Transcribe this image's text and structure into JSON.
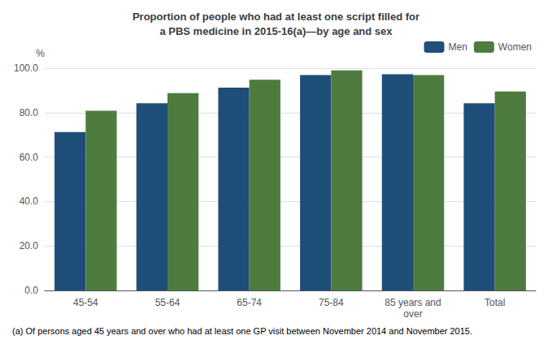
{
  "chart_data": {
    "type": "bar",
    "title": "Proportion of people who had at least one script filled for\na PBS medicine in 2015-16(a)—by age and sex",
    "footnote": "(a) Of persons aged 45 years and over who had at least one GP visit between November 2014 and November 2015.",
    "ylabel": "%",
    "categories": [
      "45-54",
      "55-64",
      "65-74",
      "75-84",
      "85 years and\nover",
      "Total"
    ],
    "series": [
      {
        "name": "Men",
        "color": "#1F4E79",
        "values": [
          71.3,
          84.2,
          91.2,
          96.9,
          97.3,
          84.2
        ]
      },
      {
        "name": "Women",
        "color": "#4E7C3F",
        "values": [
          80.8,
          88.8,
          94.8,
          99.0,
          96.9,
          89.5
        ]
      }
    ],
    "ylim": [
      0,
      100
    ],
    "yticks": [
      {
        "value": 0,
        "label": "0.0"
      },
      {
        "value": 20,
        "label": "20.0"
      },
      {
        "value": 40,
        "label": "40.0"
      },
      {
        "value": 60,
        "label": "60.0"
      },
      {
        "value": 80,
        "label": "80.0"
      },
      {
        "value": 100,
        "label": "100.0"
      }
    ],
    "grid": true,
    "legend": "upper right"
  }
}
